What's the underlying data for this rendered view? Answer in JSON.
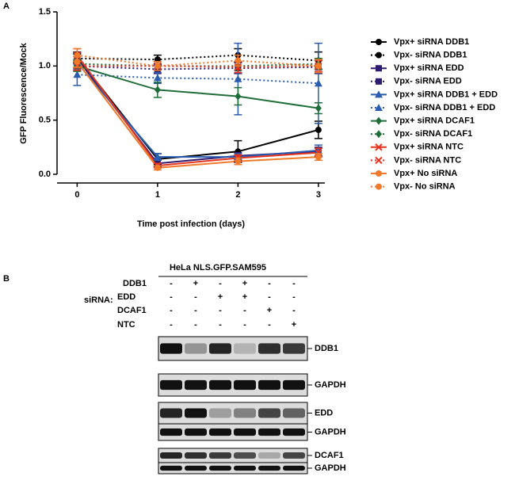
{
  "panel_a_label": "A",
  "chart_data": {
    "type": "line",
    "x_label": "Time post infection (days)",
    "y_label": "GFP Fluorescence/Mock",
    "x": [
      0,
      1,
      2,
      3
    ],
    "xlim": [
      -0.25,
      3.08
    ],
    "xticks": [
      0,
      1,
      2,
      3
    ],
    "ylim": [
      0,
      1.5
    ],
    "yticks": [
      {
        "value": 0,
        "label": "0.0"
      },
      {
        "value": 0.5,
        "label": "0.5"
      },
      {
        "value": 1,
        "label": "1.0"
      },
      {
        "value": 1.5,
        "label": "1.5"
      }
    ],
    "legend": "right",
    "series": [
      {
        "name": "Vpx+ siRNA DDB1",
        "color": "#000000",
        "marker": "circle",
        "linestyle": "solid",
        "values": [
          1.08,
          0.14,
          0.21,
          0.41
        ],
        "errors": [
          0.05,
          0.05,
          0.1,
          0.08
        ]
      },
      {
        "name": "Vpx-  siRNA DDB1",
        "color": "#000000",
        "marker": "circle",
        "linestyle": "dotted",
        "values": [
          1.07,
          1.06,
          1.1,
          1.05
        ],
        "errors": [
          0.04,
          0.04,
          0.06,
          0.08
        ]
      },
      {
        "name": "Vpx+ siRNA EDD",
        "color": "#2e1a6e",
        "marker": "square",
        "linestyle": "solid",
        "values": [
          1.07,
          0.1,
          0.17,
          0.21
        ],
        "errors": [
          0.05,
          0.03,
          0.03,
          0.04
        ]
      },
      {
        "name": "Vpx-  siRNA EDD",
        "color": "#2e1a6e",
        "marker": "square",
        "linestyle": "dotted",
        "values": [
          1.0,
          0.97,
          0.98,
          0.99
        ],
        "errors": [
          0.04,
          0.04,
          0.05,
          0.06
        ]
      },
      {
        "name": "Vpx+ siRNA DDB1 + EDD",
        "color": "#2a5db0",
        "marker": "triangle",
        "linestyle": "solid",
        "values": [
          1.03,
          0.16,
          0.16,
          0.22
        ],
        "errors": [
          0.06,
          0.03,
          0.03,
          0.05
        ]
      },
      {
        "name": "Vpx-  siRNA DDB1 + EDD",
        "color": "#2a5db0",
        "marker": "triangle",
        "linestyle": "dotted",
        "values": [
          0.92,
          0.89,
          0.88,
          0.84
        ],
        "errors": [
          0.1,
          0.05,
          0.33,
          0.37
        ]
      },
      {
        "name": "Vpx+ siRNA DCAF1",
        "color": "#1f6e3a",
        "marker": "diamond",
        "linestyle": "solid",
        "values": [
          1.0,
          0.78,
          0.72,
          0.61
        ],
        "errors": [
          0.05,
          0.07,
          0.08,
          0.05
        ]
      },
      {
        "name": "Vpx-  siRNA DCAF1",
        "color": "#1f6e3a",
        "marker": "diamond",
        "linestyle": "dotted",
        "values": [
          1.02,
          1.0,
          1.0,
          1.02
        ],
        "errors": [
          0.04,
          0.04,
          0.04,
          0.05
        ]
      },
      {
        "name": "Vpx+ siRNA NTC",
        "color": "#e8331e",
        "marker": "x",
        "linestyle": "solid",
        "values": [
          1.1,
          0.08,
          0.15,
          0.2
        ],
        "errors": [
          0.06,
          0.02,
          0.03,
          0.04
        ]
      },
      {
        "name": "Vpx-  siRNA NTC",
        "color": "#e8331e",
        "marker": "x",
        "linestyle": "dotted",
        "values": [
          1.0,
          1.0,
          0.99,
          1.0
        ],
        "errors": [
          0.04,
          0.04,
          0.05,
          0.05
        ]
      },
      {
        "name": "Vpx+ No siRNA",
        "color": "#f07a2a",
        "marker": "circle",
        "linestyle": "solid",
        "values": [
          1.04,
          0.06,
          0.12,
          0.16
        ],
        "errors": [
          0.05,
          0.02,
          0.03,
          0.03
        ]
      },
      {
        "name": "Vpx-  No siRNA",
        "color": "#f07a2a",
        "marker": "circle",
        "linestyle": "dotted",
        "values": [
          1.1,
          1.0,
          1.05,
          1.0
        ],
        "errors": [
          0.06,
          0.04,
          0.05,
          0.06
        ]
      }
    ]
  },
  "panel_b": {
    "label": "B",
    "title": "HeLa NLS.GFP.SAM595",
    "row_header": "siRNA:",
    "rows": [
      {
        "label": "DDB1",
        "signs": [
          "-",
          "+",
          "-",
          "+",
          "-",
          "-"
        ]
      },
      {
        "label": "EDD",
        "signs": [
          "-",
          "-",
          "+",
          "+",
          "-",
          "-"
        ]
      },
      {
        "label": "DCAF1",
        "signs": [
          "-",
          "-",
          "-",
          "-",
          "+",
          "-"
        ]
      },
      {
        "label": "NTC",
        "signs": [
          "-",
          "-",
          "-",
          "-",
          "-",
          "+"
        ]
      }
    ],
    "blot_labels": [
      "DDB1",
      "GAPDH",
      "EDD",
      "GAPDH",
      "DCAF1",
      "GAPDH"
    ]
  }
}
